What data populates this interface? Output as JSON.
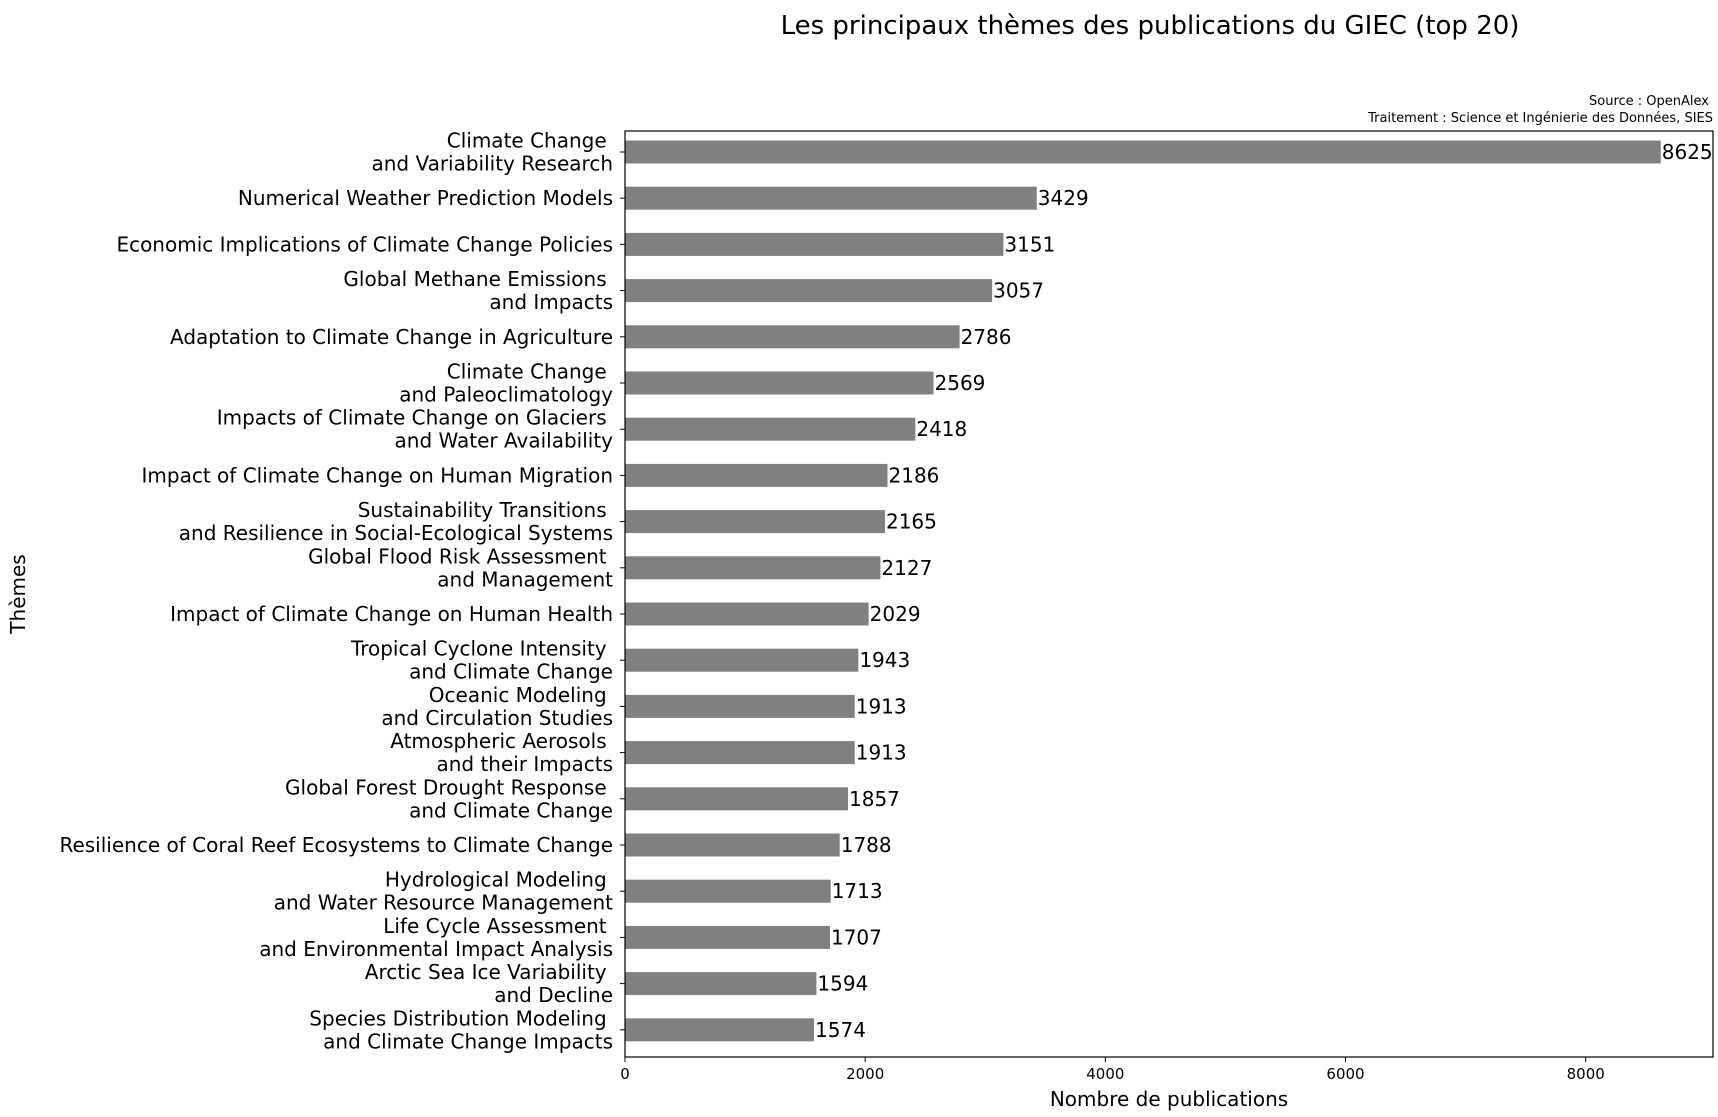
{
  "chart_data": {
    "type": "bar",
    "orientation": "horizontal",
    "title": "Les principaux thèmes des publications du GIEC (top 20)",
    "source_lines": [
      "Source : OpenAlex",
      "Traitement : Science et Ingénierie des Données, SIES"
    ],
    "xlabel": "Nombre de publications",
    "ylabel": "Thèmes",
    "xlim": [
      0,
      9060
    ],
    "xticks": [
      0,
      2000,
      4000,
      6000,
      8000
    ],
    "grid": false,
    "bar_color": "#808080",
    "categories": [
      [
        "Climate Change ",
        "and Variability Research"
      ],
      [
        "Numerical Weather Prediction Models"
      ],
      [
        "Economic Implications of Climate Change Policies"
      ],
      [
        "Global Methane Emissions ",
        "and Impacts"
      ],
      [
        "Adaptation to Climate Change in Agriculture"
      ],
      [
        "Climate Change ",
        "and Paleoclimatology"
      ],
      [
        "Impacts of Climate Change on Glaciers ",
        "and Water Availability"
      ],
      [
        "Impact of Climate Change on Human Migration"
      ],
      [
        "Sustainability Transitions ",
        "and Resilience in Social-Ecological Systems"
      ],
      [
        "Global Flood Risk Assessment ",
        "and Management"
      ],
      [
        "Impact of Climate Change on Human Health"
      ],
      [
        "Tropical Cyclone Intensity ",
        "and Climate Change"
      ],
      [
        "Oceanic Modeling ",
        "and Circulation Studies"
      ],
      [
        "Atmospheric Aerosols ",
        "and their Impacts"
      ],
      [
        "Global Forest Drought Response ",
        "and Climate Change"
      ],
      [
        "Resilience of Coral Reef Ecosystems to Climate Change"
      ],
      [
        "Hydrological Modeling ",
        "and Water Resource Management"
      ],
      [
        "Life Cycle Assessment ",
        "and Environmental Impact Analysis"
      ],
      [
        "Arctic Sea Ice Variability ",
        "and Decline"
      ],
      [
        "Species Distribution Modeling ",
        "and Climate Change Impacts"
      ]
    ],
    "values": [
      8625,
      3429,
      3151,
      3057,
      2786,
      2569,
      2418,
      2186,
      2165,
      2127,
      2029,
      1943,
      1913,
      1913,
      1857,
      1788,
      1713,
      1707,
      1594,
      1574
    ]
  }
}
